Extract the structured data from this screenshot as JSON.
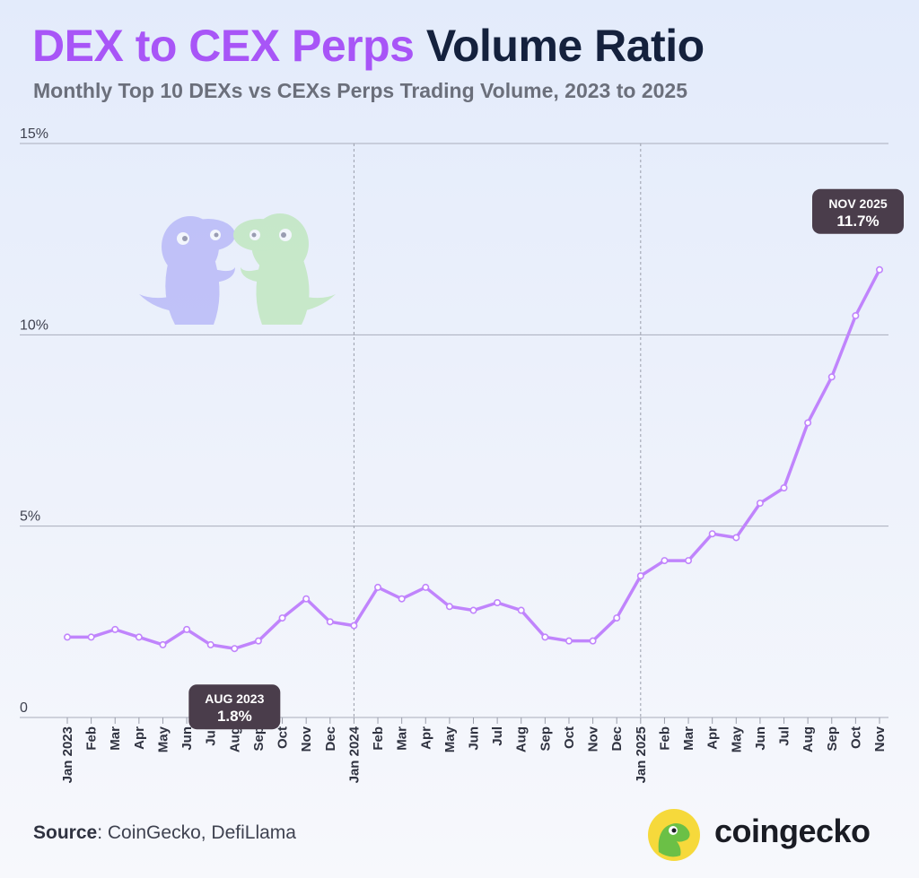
{
  "title": {
    "part1": "DEX to CEX Perps",
    "part2": "Volume Ratio"
  },
  "subtitle": "Monthly Top 10 DEXs vs CEXs Perps Trading Volume, 2023 to 2025",
  "source": {
    "label": "Source",
    "text": ": CoinGecko, DefiLlama"
  },
  "brand": {
    "name": "coingecko"
  },
  "colors": {
    "line": "#c084fc",
    "title_accent": "#a855f7",
    "title_dark": "#14213d",
    "callout_bg": "#4a3d4b"
  },
  "chart_data": {
    "type": "line",
    "title": "DEX to CEX Perps Volume Ratio",
    "xlabel": "",
    "ylabel": "",
    "ylim": [
      0,
      15
    ],
    "yticks": [
      0,
      5,
      10,
      15
    ],
    "ytick_labels": [
      "0",
      "5%",
      "10%",
      "15%"
    ],
    "categories": [
      "Jan 2023",
      "Feb",
      "Mar",
      "Apr",
      "May",
      "Jun",
      "Jul",
      "Aug",
      "Sep",
      "Oct",
      "Nov",
      "Dec",
      "Jan 2024",
      "Feb",
      "Mar",
      "Apr",
      "May",
      "Jun",
      "Jul",
      "Aug",
      "Sep",
      "Oct",
      "Nov",
      "Dec",
      "Jan 2025",
      "Feb",
      "Mar",
      "Apr",
      "May",
      "Jun",
      "Jul",
      "Aug",
      "Sep",
      "Oct",
      "Nov"
    ],
    "series": [
      {
        "name": "DEX to CEX Perps Volume Ratio",
        "values": [
          2.1,
          2.1,
          2.3,
          2.1,
          1.9,
          2.3,
          1.9,
          1.8,
          2.0,
          2.6,
          3.1,
          2.5,
          2.4,
          3.4,
          3.1,
          3.4,
          2.9,
          2.8,
          3.0,
          2.8,
          2.1,
          2.0,
          2.0,
          2.6,
          3.7,
          4.1,
          4.1,
          4.8,
          4.7,
          5.6,
          6.0,
          7.7,
          8.9,
          10.5,
          11.7
        ]
      }
    ],
    "year_markers": [
      "Jan 2024",
      "Jan 2025"
    ],
    "annotations": [
      {
        "label": "AUG 2023",
        "value": "1.8%",
        "index": 7
      },
      {
        "label": "NOV 2025",
        "value": "11.7%",
        "index": 34
      }
    ]
  }
}
